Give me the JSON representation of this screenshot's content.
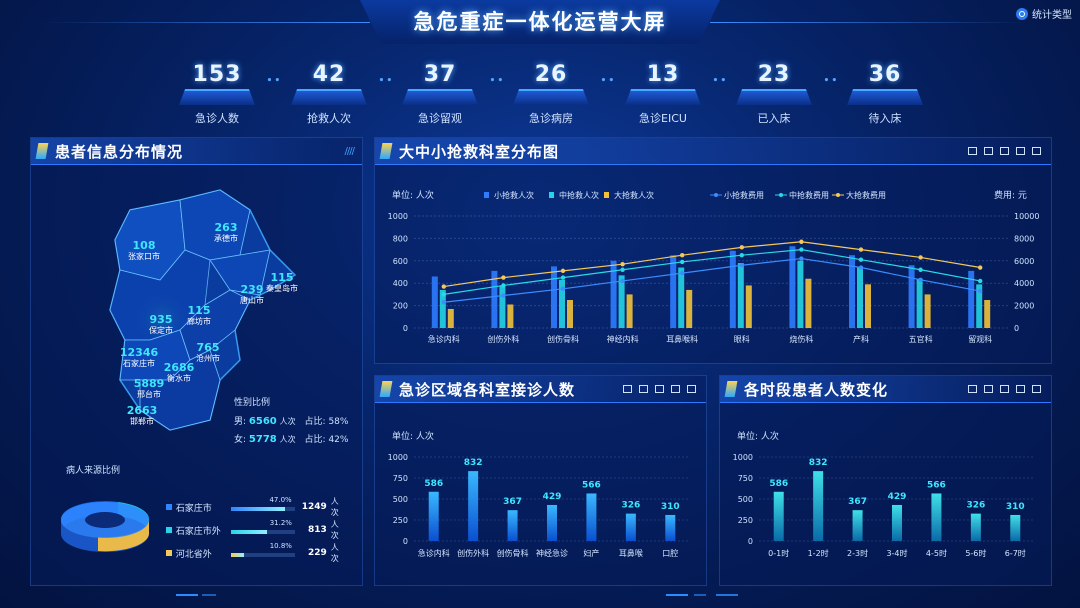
{
  "header": {
    "title": "急危重症一体化运营大屏",
    "stat_type_label": "统计类型"
  },
  "kpis": [
    {
      "value": "153",
      "label": "急诊人数"
    },
    {
      "value": "42",
      "label": "抢救人次"
    },
    {
      "value": "37",
      "label": "急诊留观"
    },
    {
      "value": "26",
      "label": "急诊病房"
    },
    {
      "value": "13",
      "label": "急诊EICU"
    },
    {
      "value": "23",
      "label": "已入床"
    },
    {
      "value": "36",
      "label": "待入床"
    }
  ],
  "panels": {
    "patient_dist": {
      "title": "患者信息分布情况"
    },
    "rescue_dist": {
      "title": "大中小抢救科室分布图"
    },
    "dept_visits": {
      "title": "急诊区域各科室接诊人数"
    },
    "time_change": {
      "title": "各时段患者人数变化"
    }
  },
  "map": {
    "regions": [
      {
        "num": "108",
        "name": "张家口市"
      },
      {
        "num": "263",
        "name": "承德市"
      },
      {
        "num": "239",
        "name": "唐山市"
      },
      {
        "num": "115",
        "name": "秦皇岛市"
      },
      {
        "num": "115",
        "name": "廊坊市"
      },
      {
        "num": "935",
        "name": "保定市"
      },
      {
        "num": "12346",
        "name": "石家庄市"
      },
      {
        "num": "765",
        "name": "沧州市"
      },
      {
        "num": "2686",
        "name": "衡水市"
      },
      {
        "num": "5889",
        "name": "邢台市"
      },
      {
        "num": "2663",
        "name": "邯郸市"
      }
    ]
  },
  "gender": {
    "title": "性别比例",
    "male_label": "男:",
    "male_value": "6560",
    "male_unit": "人次",
    "male_ratio_label": "占比:",
    "male_ratio": "58%",
    "female_label": "女:",
    "female_value": "5778",
    "female_unit": "人次",
    "female_ratio_label": "占比:",
    "female_ratio": "42%"
  },
  "source": {
    "title": "病人来源比例",
    "items": [
      {
        "label": "石家庄市",
        "percent_text": "47.0%",
        "percent": 47.0,
        "value": "1249",
        "unit": "人次",
        "color": "#2f86ff"
      },
      {
        "label": "石家庄市外",
        "percent_text": "31.2%",
        "percent": 31.2,
        "value": "813",
        "unit": "人次",
        "color": "#27d4e8"
      },
      {
        "label": "河北省外",
        "percent_text": "10.8%",
        "percent": 10.8,
        "value": "229",
        "unit": "人次",
        "color": "#f5c85a"
      }
    ]
  },
  "chart_data": [
    {
      "type": "bar",
      "ylabel": "单位: 人次",
      "y2label": "费用: 元",
      "ylim": [
        0,
        1000
      ],
      "y2lim": [
        0,
        10000
      ],
      "yticks": [
        "1000",
        "800",
        "600",
        "400",
        "200",
        "0"
      ],
      "y2ticks": [
        "10000",
        "8000",
        "6000",
        "4000",
        "2000",
        "0"
      ],
      "categories": [
        "急诊内科",
        "创伤外科",
        "创伤骨科",
        "神经内科",
        "耳鼻喉科",
        "眼科",
        "烧伤科",
        "产科",
        "五官科",
        "留观科"
      ],
      "series": [
        {
          "name": "小抢救人次",
          "kind": "bar",
          "color": "#2f7cff",
          "values": [
            460,
            510,
            550,
            600,
            650,
            690,
            730,
            650,
            560,
            510
          ]
        },
        {
          "name": "中抢救人次",
          "kind": "bar",
          "color": "#23d5e6",
          "values": [
            340,
            380,
            430,
            470,
            540,
            580,
            600,
            540,
            440,
            390
          ]
        },
        {
          "name": "大抢救人次",
          "kind": "bar",
          "color": "#f2c23a",
          "values": [
            170,
            210,
            250,
            300,
            340,
            380,
            440,
            390,
            300,
            250
          ]
        },
        {
          "name": "小抢救费用",
          "kind": "line",
          "color": "#3a8dff",
          "values": [
            2300,
            2900,
            3500,
            4200,
            4900,
            5600,
            6200,
            5400,
            4300,
            3300
          ]
        },
        {
          "name": "中抢救费用",
          "kind": "line",
          "color": "#28d9e6",
          "values": [
            3000,
            3800,
            4500,
            5200,
            5900,
            6500,
            7000,
            6100,
            5200,
            4200
          ]
        },
        {
          "name": "大抢救费用",
          "kind": "line",
          "color": "#f5c85a",
          "values": [
            3700,
            4500,
            5100,
            5700,
            6500,
            7200,
            7700,
            7000,
            6300,
            5400
          ]
        }
      ]
    },
    {
      "type": "bar",
      "ylabel": "单位: 人次",
      "ylim": [
        0,
        1000
      ],
      "yticks": [
        "1000",
        "750",
        "500",
        "250",
        "0"
      ],
      "categories": [
        "急诊内科",
        "创伤外科",
        "创伤骨科",
        "神经急诊",
        "妇产",
        "耳鼻喉",
        "口腔"
      ],
      "values": [
        586,
        832,
        367,
        429,
        566,
        326,
        310
      ]
    },
    {
      "type": "bar",
      "ylabel": "单位: 人次",
      "ylim": [
        0,
        1000
      ],
      "yticks": [
        "1000",
        "750",
        "500",
        "250",
        "0"
      ],
      "categories": [
        "0-1时",
        "1-2时",
        "2-3时",
        "3-4时",
        "4-5时",
        "5-6时",
        "6-7时"
      ],
      "values": [
        586,
        832,
        367,
        429,
        566,
        326,
        310
      ]
    }
  ]
}
